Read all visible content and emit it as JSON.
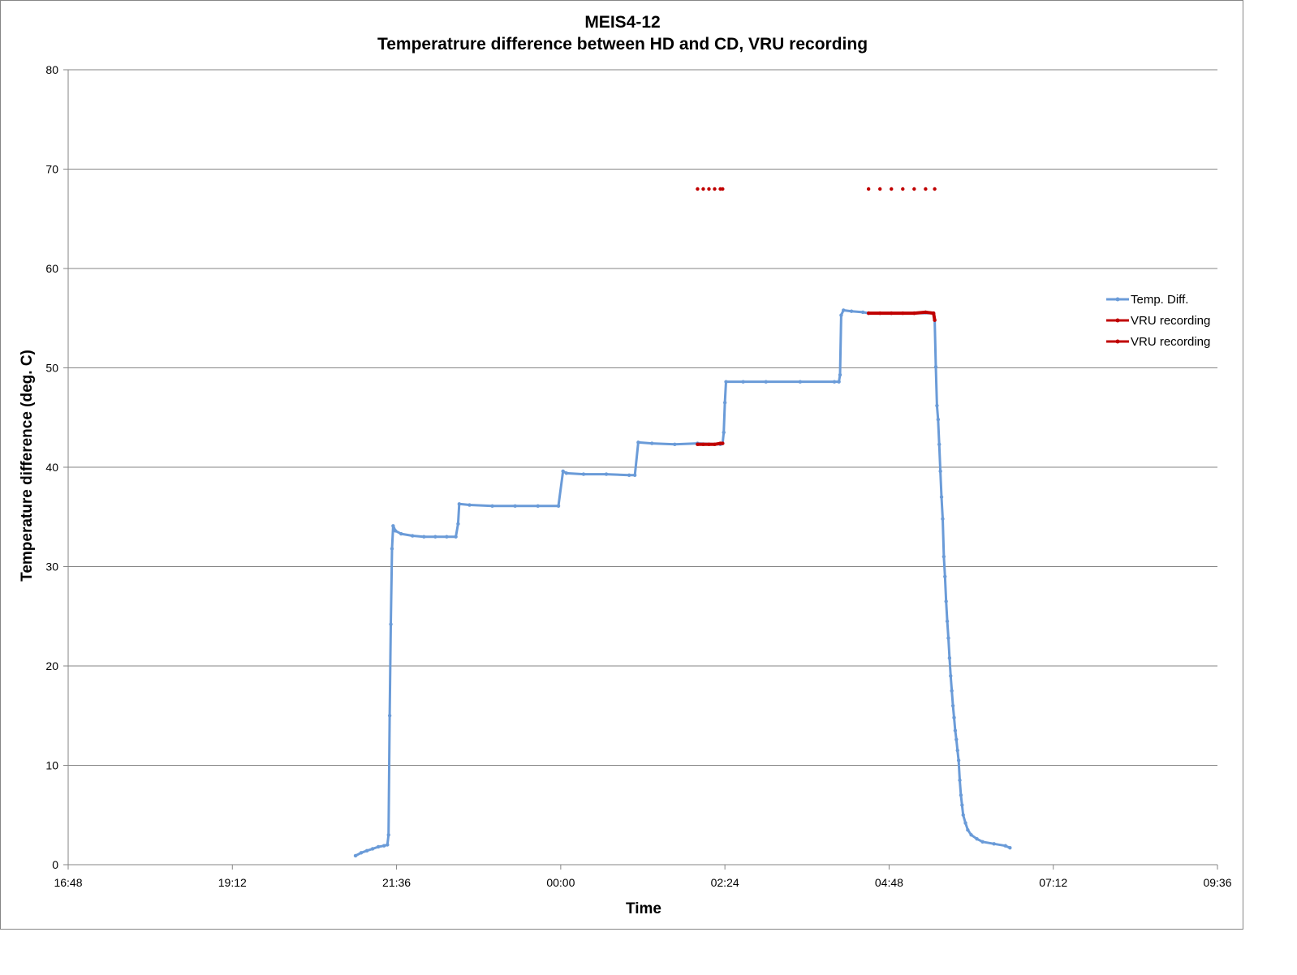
{
  "chart_data": {
    "type": "line",
    "title_line1": "MEIS4-12",
    "title_line2": "Temperatrure difference between HD and CD, VRU recording",
    "xlabel": "Time",
    "ylabel": "Temperature difference (deg. C)",
    "ylim": [
      0,
      80
    ],
    "yticks": [
      0,
      10,
      20,
      30,
      40,
      50,
      60,
      70,
      80
    ],
    "xlim": [
      "16:48",
      "09:36"
    ],
    "xticks": [
      "16:48",
      "19:12",
      "21:36",
      "00:00",
      "02:24",
      "04:48",
      "07:12",
      "09:36"
    ],
    "grid": "horizontal",
    "legend_position": "right",
    "series": [
      {
        "name": "Temp. Diff.",
        "color": "#6a9bd8",
        "points": [
          [
            "21:00",
            0.9
          ],
          [
            "21:05",
            1.2
          ],
          [
            "21:10",
            1.4
          ],
          [
            "21:15",
            1.6
          ],
          [
            "21:20",
            1.8
          ],
          [
            "21:25",
            1.9
          ],
          [
            "21:28",
            2.0
          ],
          [
            "21:29",
            3.0
          ],
          [
            "21:30",
            15.0
          ],
          [
            "21:31",
            24.2
          ],
          [
            "21:32",
            31.8
          ],
          [
            "21:33",
            34.1
          ],
          [
            "21:35",
            33.6
          ],
          [
            "21:40",
            33.3
          ],
          [
            "21:50",
            33.1
          ],
          [
            "22:00",
            33.0
          ],
          [
            "22:10",
            33.0
          ],
          [
            "22:20",
            33.0
          ],
          [
            "22:28",
            33.0
          ],
          [
            "22:30",
            34.3
          ],
          [
            "22:31",
            36.3
          ],
          [
            "22:40",
            36.2
          ],
          [
            "23:00",
            36.1
          ],
          [
            "23:20",
            36.1
          ],
          [
            "23:40",
            36.1
          ],
          [
            "23:58",
            36.1
          ],
          [
            "00:02",
            39.6
          ],
          [
            "00:05",
            39.4
          ],
          [
            "00:20",
            39.3
          ],
          [
            "00:40",
            39.3
          ],
          [
            "01:00",
            39.2
          ],
          [
            "01:05",
            39.2
          ],
          [
            "01:08",
            42.5
          ],
          [
            "01:20",
            42.4
          ],
          [
            "01:40",
            42.3
          ],
          [
            "02:00",
            42.4
          ],
          [
            "02:20",
            42.3
          ],
          [
            "02:22",
            42.4
          ],
          [
            "02:23",
            43.5
          ],
          [
            "02:24",
            46.5
          ],
          [
            "02:25",
            48.6
          ],
          [
            "02:40",
            48.6
          ],
          [
            "03:00",
            48.6
          ],
          [
            "03:30",
            48.6
          ],
          [
            "04:00",
            48.6
          ],
          [
            "04:04",
            48.6
          ],
          [
            "04:05",
            49.3
          ],
          [
            "04:06",
            55.3
          ],
          [
            "04:08",
            55.8
          ],
          [
            "04:15",
            55.7
          ],
          [
            "04:25",
            55.6
          ],
          [
            "04:30",
            55.5
          ],
          [
            "04:50",
            55.5
          ],
          [
            "05:10",
            55.5
          ],
          [
            "05:27",
            55.5
          ],
          [
            "05:28",
            54.8
          ],
          [
            "05:29",
            50.1
          ],
          [
            "05:30",
            46.2
          ],
          [
            "05:31",
            44.8
          ],
          [
            "05:32",
            42.3
          ],
          [
            "05:33",
            39.6
          ],
          [
            "05:34",
            37.0
          ],
          [
            "05:35",
            34.8
          ],
          [
            "05:36",
            31.0
          ],
          [
            "05:37",
            29.0
          ],
          [
            "05:38",
            26.5
          ],
          [
            "05:39",
            24.5
          ],
          [
            "05:40",
            22.8
          ],
          [
            "05:41",
            20.8
          ],
          [
            "05:42",
            19.0
          ],
          [
            "05:43",
            17.5
          ],
          [
            "05:44",
            16.0
          ],
          [
            "05:45",
            14.8
          ],
          [
            "05:46",
            13.5
          ],
          [
            "05:47",
            12.6
          ],
          [
            "05:48",
            11.5
          ],
          [
            "05:49",
            10.5
          ],
          [
            "05:50",
            8.5
          ],
          [
            "05:51",
            7.0
          ],
          [
            "05:52",
            6.0
          ],
          [
            "05:53",
            5.0
          ],
          [
            "05:55",
            4.2
          ],
          [
            "05:57",
            3.5
          ],
          [
            "06:00",
            3.0
          ],
          [
            "06:05",
            2.6
          ],
          [
            "06:10",
            2.3
          ],
          [
            "06:20",
            2.1
          ],
          [
            "06:30",
            1.9
          ],
          [
            "06:34",
            1.7
          ]
        ]
      },
      {
        "name": "VRU recording",
        "color": "#c00000",
        "points": [
          [
            "02:00",
            42.3
          ],
          [
            "02:05",
            42.3
          ],
          [
            "02:10",
            42.3
          ],
          [
            "02:15",
            42.3
          ],
          [
            "02:20",
            42.4
          ],
          [
            "02:22",
            42.4
          ]
        ]
      },
      {
        "name": "VRU recording",
        "color": "#c00000",
        "points": [
          [
            "04:30",
            55.5
          ],
          [
            "04:40",
            55.5
          ],
          [
            "04:50",
            55.5
          ],
          [
            "05:00",
            55.5
          ],
          [
            "05:10",
            55.5
          ],
          [
            "05:20",
            55.6
          ],
          [
            "05:27",
            55.5
          ],
          [
            "05:28",
            54.8
          ]
        ]
      },
      {
        "name": "",
        "color": "#c00000",
        "marker_only": true,
        "points": [
          [
            "02:00",
            68
          ],
          [
            "02:05",
            68
          ],
          [
            "02:10",
            68
          ],
          [
            "02:15",
            68
          ],
          [
            "02:20",
            68
          ],
          [
            "02:22",
            68
          ]
        ]
      },
      {
        "name": "",
        "color": "#c00000",
        "marker_only": true,
        "points": [
          [
            "04:30",
            68
          ],
          [
            "04:40",
            68
          ],
          [
            "04:50",
            68
          ],
          [
            "05:00",
            68
          ],
          [
            "05:10",
            68
          ],
          [
            "05:20",
            68
          ],
          [
            "05:28",
            68
          ]
        ]
      }
    ]
  }
}
